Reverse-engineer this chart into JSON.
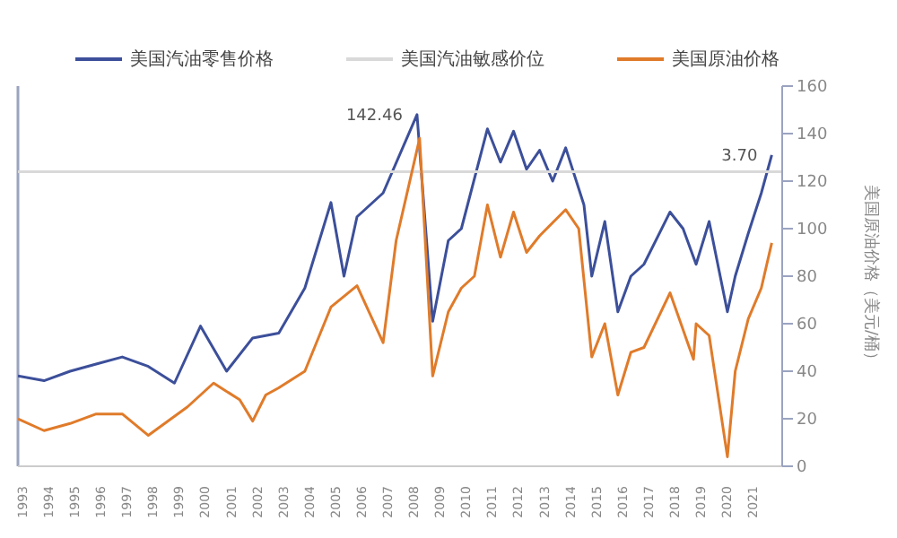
{
  "chart_data": {
    "type": "line",
    "ylabel": "美国原油价格（美元/桶）",
    "xlim": [
      1993,
      2022.3
    ],
    "xticks": [
      1993,
      1994,
      1995,
      1996,
      1997,
      1998,
      1999,
      2000,
      2001,
      2002,
      2003,
      2004,
      2005,
      2006,
      2007,
      2008,
      2009,
      2010,
      2011,
      2012,
      2013,
      2014,
      2015,
      2016,
      2017,
      2018,
      2019,
      2020,
      2021
    ],
    "ylim": [
      0,
      160
    ],
    "yticks": [
      0,
      20,
      40,
      60,
      80,
      100,
      120,
      140,
      160
    ],
    "grid": false,
    "legend": "top",
    "marker": "none",
    "line_style": "solid",
    "series": [
      {
        "name": "美国汽油零售价格",
        "color": "#3c4f9a",
        "x": [
          1993,
          1994,
          1995,
          1996,
          1997,
          1998,
          1999,
          2000,
          2001,
          2002,
          2003,
          2004,
          2005,
          2005.5,
          2006,
          2007,
          2008.3,
          2008.9,
          2009.5,
          2010,
          2011,
          2011.5,
          2012,
          2012.5,
          2013,
          2013.5,
          2014,
          2014.7,
          2015,
          2015.5,
          2016,
          2016.5,
          2017,
          2018,
          2018.5,
          2019,
          2019.5,
          2020.2,
          2020.5,
          2021,
          2021.5,
          2021.9
        ],
        "values": [
          38,
          36,
          40,
          43,
          46,
          42,
          35,
          59,
          40,
          54,
          56,
          75,
          111,
          80,
          105,
          115,
          148,
          61,
          95,
          100,
          142,
          128,
          141,
          125,
          133,
          120,
          134,
          110,
          80,
          103,
          65,
          80,
          85,
          107,
          100,
          85,
          103,
          65,
          80,
          98,
          115,
          131
        ]
      },
      {
        "name": "美国汽油敏感价位",
        "color": "#d9d9d9",
        "x": [
          1993,
          2022.3
        ],
        "values": [
          124,
          124
        ]
      },
      {
        "name": "美国原油价格",
        "color": "#e07b2a",
        "x": [
          1993,
          1994,
          1995,
          1996,
          1997,
          1998,
          1999.5,
          2000.5,
          2001.5,
          2002,
          2002.5,
          2003,
          2004,
          2005,
          2006,
          2007,
          2007.5,
          2008.4,
          2008.9,
          2009.5,
          2010,
          2010.5,
          2011,
          2011.5,
          2012,
          2012.5,
          2013,
          2014,
          2014.5,
          2015,
          2015.5,
          2016,
          2016.5,
          2017,
          2018,
          2018.9,
          2019,
          2019.5,
          2020.2,
          2020.5,
          2021,
          2021.5,
          2021.9
        ],
        "values": [
          20,
          15,
          18,
          22,
          22,
          13,
          25,
          35,
          28,
          19,
          30,
          33,
          40,
          67,
          76,
          52,
          95,
          138,
          38,
          65,
          75,
          80,
          110,
          88,
          107,
          90,
          97,
          108,
          100,
          46,
          60,
          30,
          48,
          50,
          73,
          45,
          60,
          55,
          4,
          40,
          62,
          75,
          94
        ]
      }
    ],
    "annotations": [
      {
        "text": "142.46",
        "x": 2008.3,
        "y": 148
      },
      {
        "text": "3.70",
        "x": 2021.9,
        "y": 131
      }
    ]
  }
}
